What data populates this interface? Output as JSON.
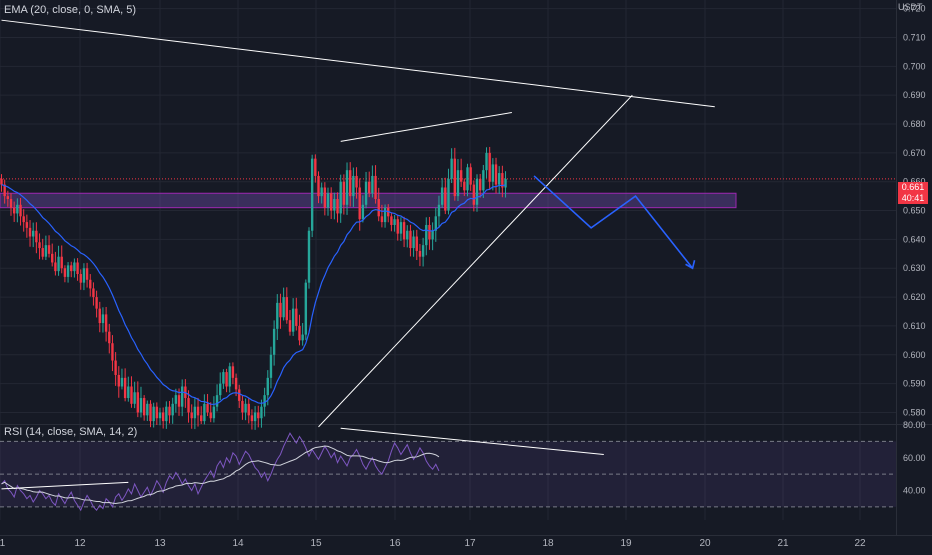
{
  "currency": "USDT",
  "indicators": {
    "ema_label": "EMA (20, close, 0, SMA, 5)",
    "rsi_label": "RSI (14, close, SMA, 14, 2)"
  },
  "last_price": {
    "value": "0.661",
    "countdown": "40:41"
  },
  "colors": {
    "background": "#161a25",
    "up_candle": "#26a69a",
    "down_candle": "#f23645",
    "ema": "#2962ff",
    "rsi": "#7e57c2",
    "rsi_ma": "#d1d4dc",
    "zone": "#7e57c2",
    "projection": "#2962ff",
    "trendline": "#ffffff"
  },
  "chart_data": {
    "type": "candlestick",
    "price_axis": {
      "ticks": [
        "0.720",
        "0.710",
        "0.700",
        "0.690",
        "0.680",
        "0.670",
        "0.660",
        "0.650",
        "0.640",
        "0.630",
        "0.620",
        "0.610",
        "0.600",
        "0.590",
        "0.580"
      ],
      "range": [
        0.576,
        0.723
      ]
    },
    "time_axis": {
      "ticks": [
        "11",
        "12",
        "13",
        "14",
        "15",
        "16",
        "17",
        "18",
        "19",
        "20",
        "21",
        "22"
      ]
    },
    "close_series": [
      0.659,
      0.655,
      0.654,
      0.651,
      0.649,
      0.652,
      0.648,
      0.646,
      0.644,
      0.641,
      0.643,
      0.639,
      0.637,
      0.634,
      0.638,
      0.635,
      0.632,
      0.629,
      0.634,
      0.63,
      0.627,
      0.631,
      0.629,
      0.632,
      0.628,
      0.625,
      0.63,
      0.626,
      0.623,
      0.62,
      0.616,
      0.611,
      0.614,
      0.608,
      0.604,
      0.598,
      0.593,
      0.589,
      0.592,
      0.585,
      0.589,
      0.583,
      0.587,
      0.58,
      0.585,
      0.579,
      0.583,
      0.577,
      0.582,
      0.578,
      0.58,
      0.577,
      0.582,
      0.579,
      0.583,
      0.586,
      0.582,
      0.589,
      0.585,
      0.58,
      0.578,
      0.582,
      0.579,
      0.577,
      0.583,
      0.58,
      0.578,
      0.582,
      0.586,
      0.59,
      0.594,
      0.589,
      0.596,
      0.592,
      0.588,
      0.584,
      0.58,
      0.583,
      0.579,
      0.577,
      0.58,
      0.578,
      0.582,
      0.586,
      0.592,
      0.6,
      0.609,
      0.618,
      0.613,
      0.62,
      0.612,
      0.608,
      0.616,
      0.61,
      0.605,
      0.607,
      0.625,
      0.643,
      0.668,
      0.662,
      0.655,
      0.658,
      0.651,
      0.656,
      0.65,
      0.654,
      0.649,
      0.66,
      0.652,
      0.664,
      0.655,
      0.662,
      0.658,
      0.647,
      0.652,
      0.66,
      0.656,
      0.662,
      0.654,
      0.648,
      0.646,
      0.651,
      0.648,
      0.645,
      0.647,
      0.642,
      0.646,
      0.64,
      0.643,
      0.637,
      0.641,
      0.636,
      0.634,
      0.638,
      0.645,
      0.64,
      0.643,
      0.648,
      0.652,
      0.658,
      0.65,
      0.661,
      0.668,
      0.655,
      0.664,
      0.66,
      0.657,
      0.665,
      0.659,
      0.652,
      0.661,
      0.657,
      0.664,
      0.67,
      0.66,
      0.666,
      0.659,
      0.663,
      0.658,
      0.661
    ],
    "ema_period": 20,
    "horizontal_zone": [
      0.651,
      0.656
    ],
    "last_price_line": 0.661,
    "projection_path": [
      [
        168,
        0.662
      ],
      [
        186,
        0.644
      ],
      [
        200,
        0.655
      ],
      [
        218,
        0.63
      ]
    ],
    "rsi": {
      "levels": [
        70,
        50,
        30
      ],
      "ticks": [
        "80.00",
        "60.00",
        "40.00"
      ],
      "range": [
        22,
        80
      ],
      "values": [
        44,
        46,
        41,
        39,
        36,
        43,
        40,
        38,
        35,
        37,
        33,
        36,
        40,
        38,
        35,
        37,
        33,
        31,
        38,
        35,
        32,
        36,
        39,
        34,
        31,
        28,
        33,
        37,
        34,
        30,
        28,
        31,
        29,
        35,
        33,
        30,
        36,
        38,
        34,
        37,
        41,
        38,
        44,
        40,
        36,
        39,
        42,
        37,
        41,
        46,
        43,
        39,
        45,
        49,
        47,
        51,
        48,
        44,
        47,
        43,
        40,
        44,
        38,
        42,
        46,
        49,
        52,
        48,
        55,
        58,
        54,
        60,
        57,
        63,
        61,
        56,
        60,
        64,
        62,
        58,
        54,
        52,
        48,
        51,
        46,
        50,
        55,
        59,
        62,
        67,
        71,
        75,
        72,
        69,
        73,
        70,
        66,
        61,
        65,
        62,
        59,
        63,
        67,
        64,
        60,
        63,
        57,
        61,
        58,
        55,
        60,
        62,
        65,
        61,
        56,
        53,
        57,
        60,
        55,
        52,
        50,
        54,
        58,
        64,
        69,
        66,
        62,
        65,
        68,
        63,
        59,
        62,
        66,
        63,
        58,
        55,
        53,
        56,
        52
      ]
    },
    "drawings": {
      "descending_resistance": [
        [
          0,
          0.716
        ],
        [
          225,
          0.686
        ]
      ],
      "rising_wedge_upper": [
        [
          107,
          0.674
        ],
        [
          161,
          0.684
        ]
      ],
      "ascending_support": [
        [
          100,
          0.575
        ],
        [
          199,
          0.69
        ]
      ],
      "rsi_divergence": [
        [
          107,
          78
        ],
        [
          190,
          62
        ]
      ],
      "rsi_rising_line": [
        [
          0,
          41
        ],
        [
          40,
          45
        ]
      ]
    }
  }
}
